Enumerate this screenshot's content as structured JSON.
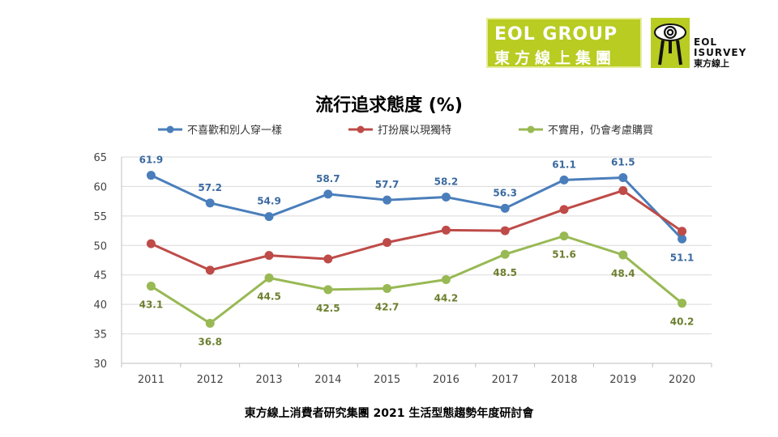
{
  "logo": {
    "group_line1": "EOL GROUP",
    "group_line2": "東方線上集團",
    "survey_line1": "EOL",
    "survey_line2": "ISURVEY",
    "survey_line3": "東方線上",
    "brand_color": "#b8cc22"
  },
  "footer": "東方線上消費者研究集團 2021 生活型態趨勢年度研討會",
  "chart_data": {
    "type": "line",
    "title": "流行追求態度 (%)",
    "xlabel": "",
    "ylabel": "",
    "categories": [
      "2011",
      "2012",
      "2013",
      "2014",
      "2015",
      "2016",
      "2017",
      "2018",
      "2019",
      "2020"
    ],
    "ylim": [
      30,
      65
    ],
    "yticks": [
      30,
      35,
      40,
      45,
      50,
      55,
      60,
      65
    ],
    "grid": "horizontal",
    "legend_position": "top",
    "series": [
      {
        "name": "不喜歡和別人穿一樣",
        "color": "#4a7ebb",
        "label_color": "#3b6aa0",
        "values": [
          61.9,
          57.2,
          54.9,
          58.7,
          57.7,
          58.2,
          56.3,
          61.1,
          61.5,
          51.1
        ],
        "labels": [
          "61.9",
          "57.2",
          "54.9",
          "58.7",
          "57.7",
          "58.2",
          "56.3",
          "61.1",
          "61.5",
          "51.1"
        ],
        "label_side": [
          "above",
          "above",
          "above",
          "above",
          "above",
          "above",
          "above",
          "above",
          "above",
          "below"
        ]
      },
      {
        "name": "打扮展以現獨特",
        "color": "#be4b48",
        "label_color": "#be4b48",
        "values": [
          50.3,
          45.8,
          48.3,
          47.7,
          50.5,
          52.6,
          52.5,
          56.1,
          59.3,
          52.4
        ],
        "labels": []
      },
      {
        "name": "不實用，仍會考慮購買",
        "color": "#98b954",
        "label_color": "#6b7f2e",
        "values": [
          43.1,
          36.8,
          44.5,
          42.5,
          42.7,
          44.2,
          48.5,
          51.6,
          48.4,
          40.2
        ],
        "labels": [
          "43.1",
          "36.8",
          "44.5",
          "42.5",
          "42.7",
          "44.2",
          "48.5",
          "51.6",
          "48.4",
          "40.2"
        ],
        "label_side": [
          "below",
          "below",
          "below",
          "below",
          "below",
          "below",
          "below",
          "below",
          "below",
          "below"
        ]
      }
    ]
  }
}
